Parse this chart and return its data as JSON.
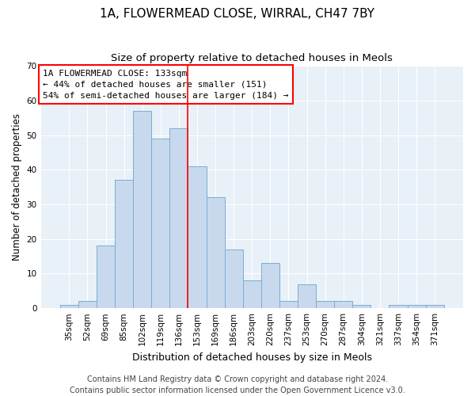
{
  "title": "1A, FLOWERMEAD CLOSE, WIRRAL, CH47 7BY",
  "subtitle": "Size of property relative to detached houses in Meols",
  "xlabel": "Distribution of detached houses by size in Meols",
  "ylabel": "Number of detached properties",
  "bar_color": "#c8d9ed",
  "bar_edge_color": "#7aadd4",
  "background_color": "#e8f0f8",
  "grid_color": "#ffffff",
  "categories": [
    "35sqm",
    "52sqm",
    "69sqm",
    "85sqm",
    "102sqm",
    "119sqm",
    "136sqm",
    "153sqm",
    "169sqm",
    "186sqm",
    "203sqm",
    "220sqm",
    "237sqm",
    "253sqm",
    "270sqm",
    "287sqm",
    "304sqm",
    "321sqm",
    "337sqm",
    "354sqm",
    "371sqm"
  ],
  "values": [
    1,
    2,
    18,
    37,
    57,
    49,
    52,
    41,
    32,
    17,
    8,
    13,
    2,
    7,
    2,
    2,
    1,
    0,
    1,
    1,
    1
  ],
  "ylim": [
    0,
    70
  ],
  "yticks": [
    0,
    10,
    20,
    30,
    40,
    50,
    60,
    70
  ],
  "property_label": "1A FLOWERMEAD CLOSE: 133sqm",
  "annotation_line1": "← 44% of detached houses are smaller (151)",
  "annotation_line2": "54% of semi-detached houses are larger (184) →",
  "vline_position": 6.5,
  "footer_line1": "Contains HM Land Registry data © Crown copyright and database right 2024.",
  "footer_line2": "Contains public sector information licensed under the Open Government Licence v3.0.",
  "title_fontsize": 11,
  "subtitle_fontsize": 9.5,
  "xlabel_fontsize": 9,
  "ylabel_fontsize": 8.5,
  "tick_fontsize": 7.5,
  "annotation_fontsize": 8,
  "footer_fontsize": 7
}
